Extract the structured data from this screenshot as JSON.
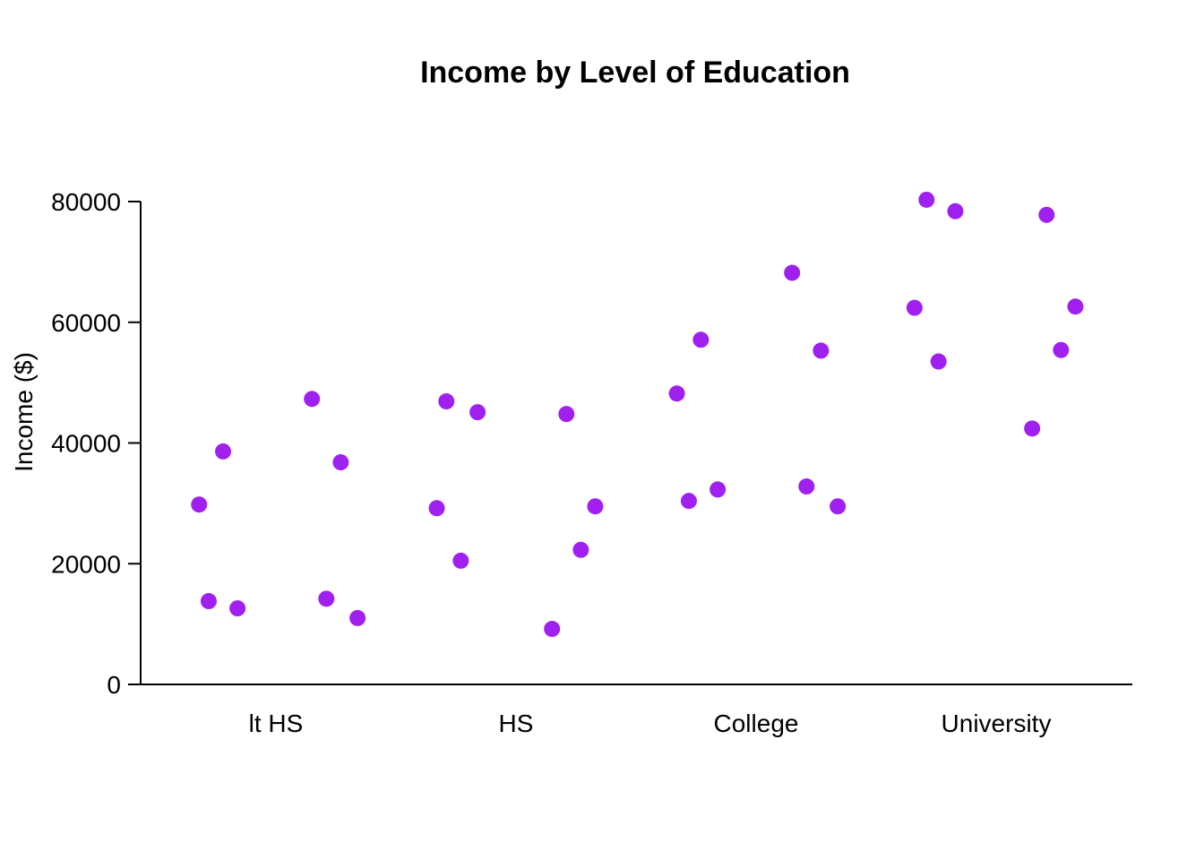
{
  "chart_data": {
    "type": "scatter",
    "title": "Income by Level of Education",
    "xlabel": "",
    "ylabel": "Income ($)",
    "categories": [
      "lt HS",
      "HS",
      "College",
      "University"
    ],
    "ylim": [
      0,
      80000
    ],
    "yticks": [
      "0",
      "20000",
      "40000",
      "60000",
      "80000"
    ],
    "grid": false,
    "legend": "none",
    "marker_color": "#A020F0",
    "points": [
      {
        "category": "lt HS",
        "jitter": -0.32,
        "y": 29800
      },
      {
        "category": "lt HS",
        "jitter": -0.28,
        "y": 13800
      },
      {
        "category": "lt HS",
        "jitter": -0.22,
        "y": 38600
      },
      {
        "category": "lt HS",
        "jitter": -0.16,
        "y": 12600
      },
      {
        "category": "lt HS",
        "jitter": 0.15,
        "y": 47300
      },
      {
        "category": "lt HS",
        "jitter": 0.21,
        "y": 14200
      },
      {
        "category": "lt HS",
        "jitter": 0.27,
        "y": 36800
      },
      {
        "category": "lt HS",
        "jitter": 0.34,
        "y": 11000
      },
      {
        "category": "HS",
        "jitter": -0.33,
        "y": 29200
      },
      {
        "category": "HS",
        "jitter": -0.29,
        "y": 46900
      },
      {
        "category": "HS",
        "jitter": -0.23,
        "y": 20500
      },
      {
        "category": "HS",
        "jitter": -0.16,
        "y": 45100
      },
      {
        "category": "HS",
        "jitter": 0.15,
        "y": 9200
      },
      {
        "category": "HS",
        "jitter": 0.21,
        "y": 44800
      },
      {
        "category": "HS",
        "jitter": 0.27,
        "y": 22300
      },
      {
        "category": "HS",
        "jitter": 0.33,
        "y": 29500
      },
      {
        "category": "College",
        "jitter": -0.33,
        "y": 48200
      },
      {
        "category": "College",
        "jitter": -0.28,
        "y": 30400
      },
      {
        "category": "College",
        "jitter": -0.23,
        "y": 57100
      },
      {
        "category": "College",
        "jitter": -0.16,
        "y": 32300
      },
      {
        "category": "College",
        "jitter": 0.15,
        "y": 68200
      },
      {
        "category": "College",
        "jitter": 0.21,
        "y": 32800
      },
      {
        "category": "College",
        "jitter": 0.27,
        "y": 55300
      },
      {
        "category": "College",
        "jitter": 0.34,
        "y": 29500
      },
      {
        "category": "University",
        "jitter": -0.34,
        "y": 62400
      },
      {
        "category": "University",
        "jitter": -0.29,
        "y": 80300
      },
      {
        "category": "University",
        "jitter": -0.24,
        "y": 53500
      },
      {
        "category": "University",
        "jitter": -0.17,
        "y": 78400
      },
      {
        "category": "University",
        "jitter": 0.15,
        "y": 42400
      },
      {
        "category": "University",
        "jitter": 0.21,
        "y": 77800
      },
      {
        "category": "University",
        "jitter": 0.27,
        "y": 55400
      },
      {
        "category": "University",
        "jitter": 0.33,
        "y": 62600
      }
    ]
  }
}
